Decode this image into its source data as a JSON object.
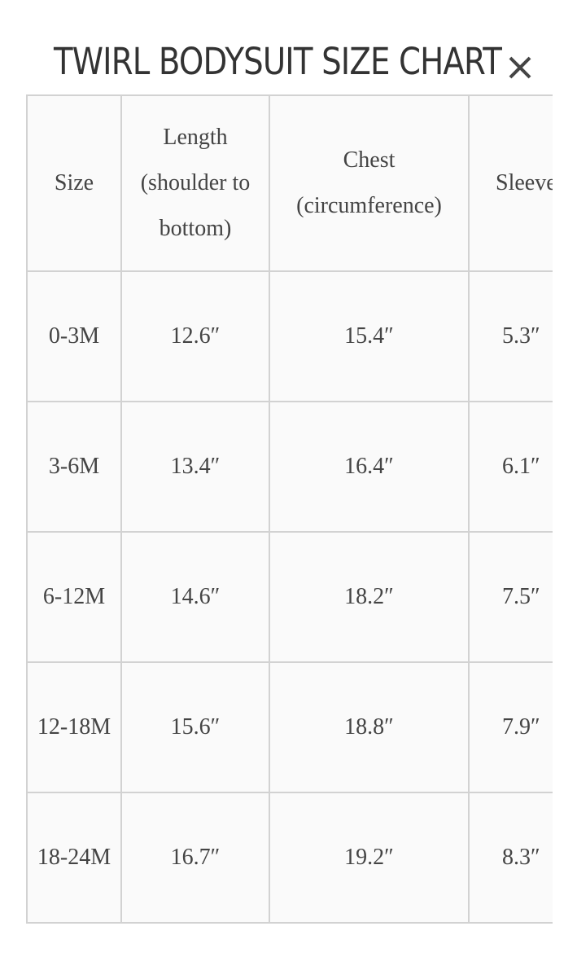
{
  "title": "TWIRL BODYSUIT SIZE CHART",
  "close_icon": "close-x-icon",
  "table": {
    "headers": [
      "Size",
      "Length (shoulder to bottom)",
      "Chest (circumference)",
      "Sleeve Length"
    ],
    "rows": [
      {
        "size": "0-3M",
        "length": "12.6″",
        "chest": "15.4″",
        "sleeve": "5.3″"
      },
      {
        "size": "3-6M",
        "length": "13.4″",
        "chest": "16.4″",
        "sleeve": "6.1″"
      },
      {
        "size": "6-12M",
        "length": "14.6″",
        "chest": "18.2″",
        "sleeve": "7.5″"
      },
      {
        "size": "12-18M",
        "length": "15.6″",
        "chest": "18.8″",
        "sleeve": "7.9″"
      },
      {
        "size": "18-24M",
        "length": "16.7″",
        "chest": "19.2″",
        "sleeve": "8.3″"
      }
    ]
  }
}
